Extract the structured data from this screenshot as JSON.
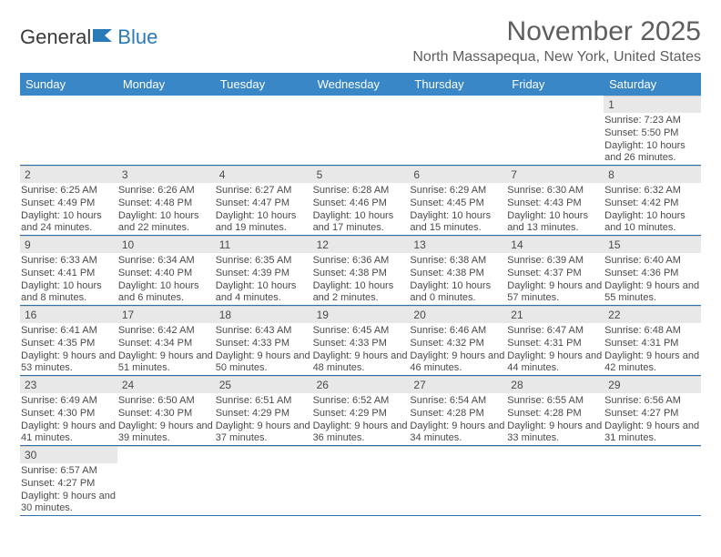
{
  "logo": {
    "word1": "General",
    "word2": "Blue"
  },
  "title": "November 2025",
  "location": "North Massapequa, New York, United States",
  "colors": {
    "header_bg": "#3a87c7",
    "header_text": "#ffffff",
    "daynum_bg": "#e8e8e8",
    "border": "#2f6fa6",
    "text": "#4a4a4a"
  },
  "day_names": [
    "Sunday",
    "Monday",
    "Tuesday",
    "Wednesday",
    "Thursday",
    "Friday",
    "Saturday"
  ],
  "weeks": [
    [
      null,
      null,
      null,
      null,
      null,
      null,
      {
        "n": "1",
        "sr": "7:23 AM",
        "ss": "5:50 PM",
        "dl": "10 hours and 26 minutes."
      }
    ],
    [
      {
        "n": "2",
        "sr": "6:25 AM",
        "ss": "4:49 PM",
        "dl": "10 hours and 24 minutes."
      },
      {
        "n": "3",
        "sr": "6:26 AM",
        "ss": "4:48 PM",
        "dl": "10 hours and 22 minutes."
      },
      {
        "n": "4",
        "sr": "6:27 AM",
        "ss": "4:47 PM",
        "dl": "10 hours and 19 minutes."
      },
      {
        "n": "5",
        "sr": "6:28 AM",
        "ss": "4:46 PM",
        "dl": "10 hours and 17 minutes."
      },
      {
        "n": "6",
        "sr": "6:29 AM",
        "ss": "4:45 PM",
        "dl": "10 hours and 15 minutes."
      },
      {
        "n": "7",
        "sr": "6:30 AM",
        "ss": "4:43 PM",
        "dl": "10 hours and 13 minutes."
      },
      {
        "n": "8",
        "sr": "6:32 AM",
        "ss": "4:42 PM",
        "dl": "10 hours and 10 minutes."
      }
    ],
    [
      {
        "n": "9",
        "sr": "6:33 AM",
        "ss": "4:41 PM",
        "dl": "10 hours and 8 minutes."
      },
      {
        "n": "10",
        "sr": "6:34 AM",
        "ss": "4:40 PM",
        "dl": "10 hours and 6 minutes."
      },
      {
        "n": "11",
        "sr": "6:35 AM",
        "ss": "4:39 PM",
        "dl": "10 hours and 4 minutes."
      },
      {
        "n": "12",
        "sr": "6:36 AM",
        "ss": "4:38 PM",
        "dl": "10 hours and 2 minutes."
      },
      {
        "n": "13",
        "sr": "6:38 AM",
        "ss": "4:38 PM",
        "dl": "10 hours and 0 minutes."
      },
      {
        "n": "14",
        "sr": "6:39 AM",
        "ss": "4:37 PM",
        "dl": "9 hours and 57 minutes."
      },
      {
        "n": "15",
        "sr": "6:40 AM",
        "ss": "4:36 PM",
        "dl": "9 hours and 55 minutes."
      }
    ],
    [
      {
        "n": "16",
        "sr": "6:41 AM",
        "ss": "4:35 PM",
        "dl": "9 hours and 53 minutes."
      },
      {
        "n": "17",
        "sr": "6:42 AM",
        "ss": "4:34 PM",
        "dl": "9 hours and 51 minutes."
      },
      {
        "n": "18",
        "sr": "6:43 AM",
        "ss": "4:33 PM",
        "dl": "9 hours and 50 minutes."
      },
      {
        "n": "19",
        "sr": "6:45 AM",
        "ss": "4:33 PM",
        "dl": "9 hours and 48 minutes."
      },
      {
        "n": "20",
        "sr": "6:46 AM",
        "ss": "4:32 PM",
        "dl": "9 hours and 46 minutes."
      },
      {
        "n": "21",
        "sr": "6:47 AM",
        "ss": "4:31 PM",
        "dl": "9 hours and 44 minutes."
      },
      {
        "n": "22",
        "sr": "6:48 AM",
        "ss": "4:31 PM",
        "dl": "9 hours and 42 minutes."
      }
    ],
    [
      {
        "n": "23",
        "sr": "6:49 AM",
        "ss": "4:30 PM",
        "dl": "9 hours and 41 minutes."
      },
      {
        "n": "24",
        "sr": "6:50 AM",
        "ss": "4:30 PM",
        "dl": "9 hours and 39 minutes."
      },
      {
        "n": "25",
        "sr": "6:51 AM",
        "ss": "4:29 PM",
        "dl": "9 hours and 37 minutes."
      },
      {
        "n": "26",
        "sr": "6:52 AM",
        "ss": "4:29 PM",
        "dl": "9 hours and 36 minutes."
      },
      {
        "n": "27",
        "sr": "6:54 AM",
        "ss": "4:28 PM",
        "dl": "9 hours and 34 minutes."
      },
      {
        "n": "28",
        "sr": "6:55 AM",
        "ss": "4:28 PM",
        "dl": "9 hours and 33 minutes."
      },
      {
        "n": "29",
        "sr": "6:56 AM",
        "ss": "4:27 PM",
        "dl": "9 hours and 31 minutes."
      }
    ],
    [
      {
        "n": "30",
        "sr": "6:57 AM",
        "ss": "4:27 PM",
        "dl": "9 hours and 30 minutes."
      },
      null,
      null,
      null,
      null,
      null,
      null
    ]
  ],
  "labels": {
    "sunrise": "Sunrise:",
    "sunset": "Sunset:",
    "daylight": "Daylight:"
  }
}
